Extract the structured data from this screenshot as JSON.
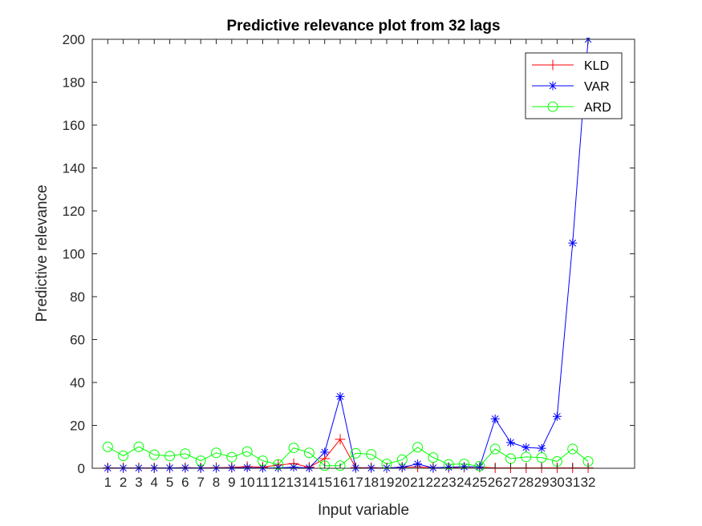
{
  "chart_data": {
    "type": "line",
    "title": "Predictive relevance plot from 32 lags",
    "xlabel": "Input variable",
    "ylabel": "Predictive relevance",
    "xlim": [
      0,
      35
    ],
    "ylim": [
      0,
      200
    ],
    "x_ticks": [
      1,
      2,
      3,
      4,
      5,
      6,
      7,
      8,
      9,
      10,
      11,
      12,
      13,
      14,
      15,
      16,
      17,
      18,
      19,
      20,
      21,
      22,
      23,
      24,
      25,
      26,
      27,
      28,
      29,
      30,
      31,
      32
    ],
    "y_ticks": [
      0,
      20,
      40,
      60,
      80,
      100,
      120,
      140,
      160,
      180,
      200
    ],
    "grid": false,
    "legend_position": "top-right",
    "x": [
      1,
      2,
      3,
      4,
      5,
      6,
      7,
      8,
      9,
      10,
      11,
      12,
      13,
      14,
      15,
      16,
      17,
      18,
      19,
      20,
      21,
      22,
      23,
      24,
      25,
      26,
      27,
      28,
      29,
      30,
      31,
      32
    ],
    "series": [
      {
        "name": "KLD",
        "color": "#ff0000",
        "marker": "plus",
        "values": [
          0.2,
          0.2,
          0.2,
          0.2,
          0.2,
          0.3,
          0.2,
          0.3,
          0.4,
          0.8,
          0.5,
          1.5,
          2.2,
          0.5,
          4.5,
          13.5,
          0.3,
          0.3,
          0.2,
          0.5,
          0.6,
          0.3,
          0.3,
          0.5,
          0.5,
          0.2,
          0.2,
          0.2,
          0.2,
          0.2,
          0.2,
          0.2
        ]
      },
      {
        "name": "VAR",
        "color": "#0000ff",
        "marker": "asterisk",
        "values": [
          0.1,
          0.1,
          0.1,
          0.1,
          0.2,
          0.2,
          0.1,
          0.1,
          0.2,
          0.3,
          0.1,
          0.2,
          0.5,
          0.2,
          7.5,
          33.5,
          0.1,
          0.1,
          0.1,
          0.5,
          2.0,
          0.2,
          0.5,
          0.7,
          0.6,
          23.0,
          12.0,
          9.7,
          9.3,
          24.2,
          105.0,
          200.0
        ]
      },
      {
        "name": "ARD",
        "color": "#00ff00",
        "marker": "circle",
        "values": [
          10.0,
          5.8,
          10.0,
          6.3,
          5.7,
          6.8,
          3.5,
          7.2,
          5.2,
          7.8,
          3.5,
          1.8,
          9.5,
          7.2,
          1.2,
          1.2,
          7.0,
          6.5,
          2.0,
          4.0,
          9.8,
          5.0,
          1.8,
          2.0,
          1.0,
          9.0,
          4.5,
          5.3,
          5.0,
          3.2,
          9.0,
          3.2
        ]
      }
    ]
  }
}
